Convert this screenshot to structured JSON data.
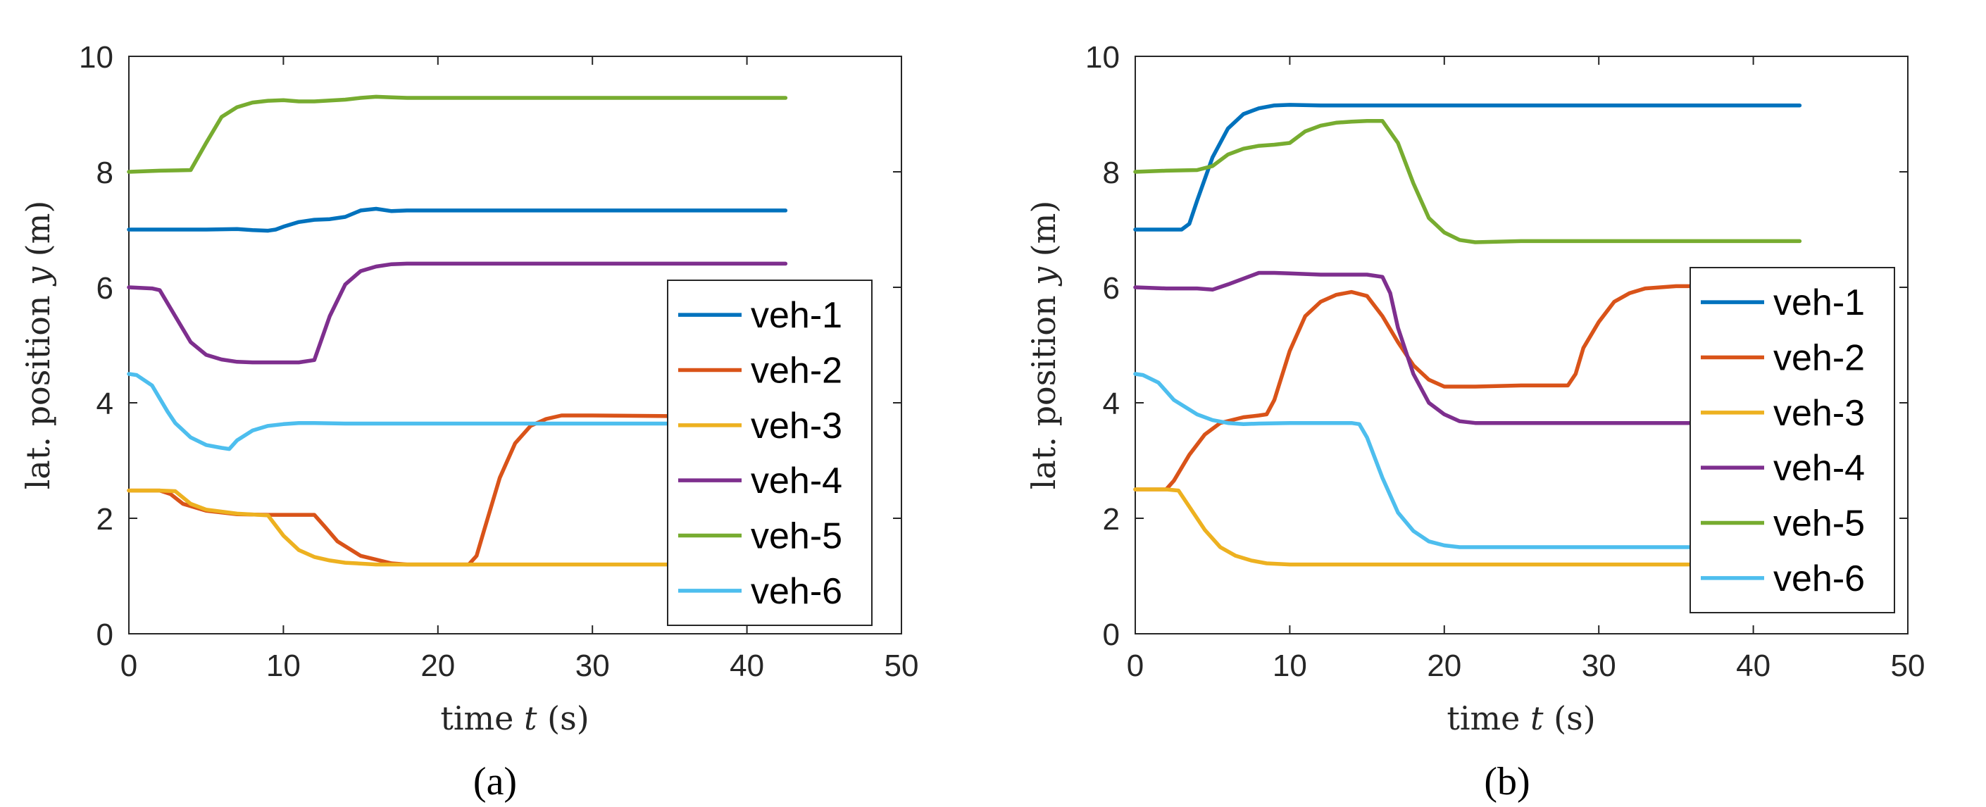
{
  "colors": {
    "veh-1": "#0072BD",
    "veh-2": "#D95319",
    "veh-3": "#EDB120",
    "veh-4": "#7E2F8E",
    "veh-5": "#77AC30",
    "veh-6": "#4DBEEE",
    "axis": "#262626"
  },
  "chart_data": [
    {
      "type": "line",
      "caption": "(a)",
      "xlabel_prefix": "time",
      "xlabel_var": "t",
      "xlabel_unit": "(s)",
      "ylabel_prefix": "lat. position",
      "ylabel_var": "y",
      "ylabel_unit": "(m)",
      "xlim": [
        0,
        50
      ],
      "ylim": [
        0,
        10
      ],
      "xticks": [
        0,
        10,
        20,
        30,
        40,
        50
      ],
      "yticks": [
        0,
        2,
        4,
        6,
        8,
        10
      ],
      "legend_position": "bottom-right",
      "series": [
        {
          "name": "veh-1",
          "x": [
            0,
            3,
            5,
            7,
            8,
            9,
            9.5,
            10,
            11,
            12,
            13,
            14,
            15,
            16,
            17,
            18,
            20,
            25,
            30,
            42.5
          ],
          "y": [
            7.0,
            7.0,
            7.0,
            7.01,
            6.99,
            6.98,
            7.0,
            7.05,
            7.13,
            7.17,
            7.18,
            7.22,
            7.33,
            7.36,
            7.32,
            7.33,
            7.33,
            7.33,
            7.33,
            7.33
          ]
        },
        {
          "name": "veh-2",
          "x": [
            0,
            2,
            2.7,
            3.5,
            5,
            7,
            9,
            10,
            11,
            12,
            12.7,
            13.5,
            15,
            17,
            18,
            20,
            22,
            22.5,
            23,
            24,
            25,
            26,
            27,
            28,
            30,
            35,
            38.5
          ],
          "y": [
            2.48,
            2.48,
            2.42,
            2.25,
            2.13,
            2.07,
            2.06,
            2.06,
            2.06,
            2.06,
            1.85,
            1.6,
            1.35,
            1.22,
            1.2,
            1.2,
            1.2,
            1.35,
            1.8,
            2.7,
            3.3,
            3.6,
            3.72,
            3.78,
            3.78,
            3.77,
            3.77
          ]
        },
        {
          "name": "veh-3",
          "x": [
            0,
            2,
            3,
            4,
            5,
            7,
            9,
            10,
            11,
            12,
            13,
            14,
            16,
            18,
            20,
            30,
            38.5
          ],
          "y": [
            2.48,
            2.48,
            2.47,
            2.25,
            2.15,
            2.08,
            2.05,
            1.7,
            1.45,
            1.33,
            1.27,
            1.23,
            1.2,
            1.2,
            1.2,
            1.2,
            1.2
          ]
        },
        {
          "name": "veh-4",
          "x": [
            0,
            1.5,
            2,
            3,
            4,
            5,
            6,
            7,
            8,
            9,
            10,
            11,
            12,
            13,
            14,
            15,
            16,
            17,
            18,
            20,
            30,
            42.5
          ],
          "y": [
            6.0,
            5.98,
            5.95,
            5.5,
            5.05,
            4.83,
            4.75,
            4.71,
            4.7,
            4.7,
            4.7,
            4.7,
            4.74,
            5.5,
            6.05,
            6.28,
            6.36,
            6.4,
            6.41,
            6.41,
            6.41,
            6.41
          ]
        },
        {
          "name": "veh-5",
          "x": [
            0,
            2,
            4,
            5,
            6,
            7,
            8,
            9,
            10,
            11,
            12,
            14,
            15,
            16,
            17,
            18,
            20,
            30,
            42.5
          ],
          "y": [
            8.0,
            8.02,
            8.03,
            8.5,
            8.95,
            9.12,
            9.2,
            9.23,
            9.24,
            9.22,
            9.22,
            9.25,
            9.28,
            9.3,
            9.29,
            9.28,
            9.28,
            9.28,
            9.28
          ]
        },
        {
          "name": "veh-6",
          "x": [
            0,
            0.5,
            1.5,
            2.5,
            3,
            4,
            5,
            6,
            6.5,
            7,
            8,
            9,
            10,
            11,
            12,
            14,
            20,
            30,
            38.5
          ],
          "y": [
            4.5,
            4.48,
            4.3,
            3.85,
            3.65,
            3.4,
            3.27,
            3.22,
            3.2,
            3.35,
            3.52,
            3.6,
            3.63,
            3.65,
            3.65,
            3.64,
            3.64,
            3.64,
            3.64
          ]
        }
      ]
    },
    {
      "type": "line",
      "caption": "(b)",
      "xlabel_prefix": "time",
      "xlabel_var": "t",
      "xlabel_unit": "(s)",
      "ylabel_prefix": "lat. position",
      "ylabel_var": "y",
      "ylabel_unit": "(m)",
      "xlim": [
        0,
        50
      ],
      "ylim": [
        0,
        10
      ],
      "xticks": [
        0,
        10,
        20,
        30,
        40,
        50
      ],
      "yticks": [
        0,
        2,
        4,
        6,
        8,
        10
      ],
      "legend_position": "bottom-right",
      "series": [
        {
          "name": "veh-1",
          "x": [
            0,
            3,
            3.5,
            4,
            5,
            6,
            7,
            8,
            9,
            10,
            12,
            20,
            30,
            43
          ],
          "y": [
            7.0,
            7.0,
            7.1,
            7.5,
            8.25,
            8.75,
            9.0,
            9.1,
            9.15,
            9.16,
            9.15,
            9.15,
            9.15,
            9.15
          ]
        },
        {
          "name": "veh-2",
          "x": [
            0,
            2,
            2.5,
            3.5,
            4.5,
            5.5,
            7,
            8,
            8.5,
            9,
            10,
            11,
            12,
            13,
            14,
            15,
            16,
            17,
            18,
            19,
            20,
            22,
            25,
            28,
            28.5,
            29,
            30,
            31,
            32,
            33,
            35,
            36.5
          ],
          "y": [
            2.5,
            2.5,
            2.65,
            3.1,
            3.45,
            3.65,
            3.75,
            3.78,
            3.8,
            4.05,
            4.9,
            5.5,
            5.75,
            5.87,
            5.92,
            5.85,
            5.5,
            5.05,
            4.65,
            4.4,
            4.28,
            4.28,
            4.3,
            4.3,
            4.5,
            4.95,
            5.4,
            5.75,
            5.9,
            5.98,
            6.02,
            6.02
          ]
        },
        {
          "name": "veh-3",
          "x": [
            0,
            2,
            2.8,
            3.5,
            4.5,
            5.5,
            6.5,
            7.5,
            8.5,
            10,
            15,
            20,
            30,
            36.5
          ],
          "y": [
            2.5,
            2.5,
            2.48,
            2.2,
            1.8,
            1.5,
            1.35,
            1.27,
            1.22,
            1.2,
            1.2,
            1.2,
            1.2,
            1.2
          ]
        },
        {
          "name": "veh-4",
          "x": [
            0,
            2,
            4,
            5,
            6,
            7,
            8,
            9,
            10,
            12,
            15,
            16,
            16.5,
            17,
            18,
            19,
            20,
            21,
            22,
            25,
            30,
            36.5
          ],
          "y": [
            6.0,
            5.98,
            5.98,
            5.96,
            6.05,
            6.15,
            6.25,
            6.25,
            6.24,
            6.22,
            6.22,
            6.18,
            5.9,
            5.3,
            4.5,
            4.0,
            3.8,
            3.68,
            3.65,
            3.65,
            3.65,
            3.65
          ]
        },
        {
          "name": "veh-5",
          "x": [
            0,
            2,
            4,
            5,
            6,
            7,
            8,
            9,
            10,
            11,
            12,
            13,
            14,
            15,
            16,
            17,
            18,
            19,
            20,
            21,
            22,
            25,
            30,
            43
          ],
          "y": [
            8.0,
            8.02,
            8.03,
            8.1,
            8.3,
            8.4,
            8.45,
            8.47,
            8.5,
            8.7,
            8.8,
            8.85,
            8.87,
            8.88,
            8.88,
            8.5,
            7.8,
            7.2,
            6.95,
            6.82,
            6.78,
            6.8,
            6.8,
            6.8
          ]
        },
        {
          "name": "veh-6",
          "x": [
            0,
            0.5,
            1.5,
            2.5,
            4,
            5,
            6,
            7,
            8,
            10,
            12,
            14,
            14.5,
            15,
            16,
            17,
            18,
            19,
            20,
            21,
            22,
            25,
            30,
            36.5
          ],
          "y": [
            4.5,
            4.48,
            4.35,
            4.05,
            3.8,
            3.7,
            3.65,
            3.63,
            3.64,
            3.65,
            3.65,
            3.65,
            3.63,
            3.4,
            2.7,
            2.1,
            1.78,
            1.6,
            1.53,
            1.5,
            1.5,
            1.5,
            1.5,
            1.5
          ]
        }
      ]
    }
  ]
}
